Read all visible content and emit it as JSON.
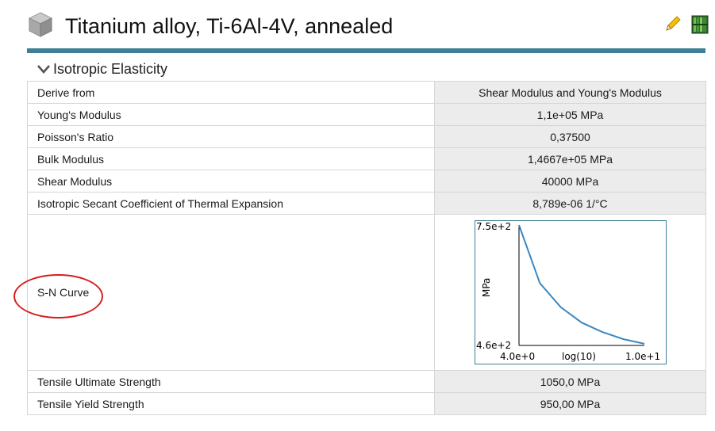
{
  "header": {
    "title": "Titanium alloy, Ti-6Al-4V, annealed",
    "material_icon": "cube-icon",
    "edit_icon": "pencil-icon",
    "library_icon": "library-books-icon",
    "accent_color": "#3d7f95"
  },
  "section": {
    "title": "Isotropic Elasticity",
    "expanded_icon": "chevron-down-icon"
  },
  "rows": [
    {
      "label": "Derive from",
      "value": "Shear Modulus and Young's Modulus"
    },
    {
      "label": "Young's Modulus",
      "value": "1,1e+05  MPa"
    },
    {
      "label": "Poisson's Ratio",
      "value": "0,37500"
    },
    {
      "label": "Bulk Modulus",
      "value": "1,4667e+05  MPa"
    },
    {
      "label": "Shear Modulus",
      "value": "40000  MPa"
    },
    {
      "label": "Isotropic Secant Coefficient of Thermal Expansion",
      "value": "8,789e-06  1/°C"
    }
  ],
  "sn_curve": {
    "label": "S-N Curve",
    "highlight_color": "#d81c1c"
  },
  "chart_data": {
    "type": "line",
    "title": "",
    "xlabel": "log(10)",
    "ylabel": "MPa",
    "y_max_label": "7.5e+2",
    "y_min_label": "4.6e+2",
    "x_min_label": "4.0e+0",
    "x_max_label": "1.0e+1",
    "xlim": [
      4.0,
      10.0
    ],
    "ylim": [
      460,
      750
    ],
    "line_color": "#3b87c0",
    "series": [
      {
        "x": [
          4.0,
          5.0,
          6.0,
          7.0,
          8.0,
          9.0,
          10.0
        ],
        "y": [
          750,
          610,
          552,
          515,
          492,
          475,
          464
        ]
      }
    ]
  },
  "rows_after": [
    {
      "label": "Tensile Ultimate Strength",
      "value": "1050,0  MPa"
    },
    {
      "label": "Tensile Yield Strength",
      "value": "950,00  MPa"
    }
  ]
}
